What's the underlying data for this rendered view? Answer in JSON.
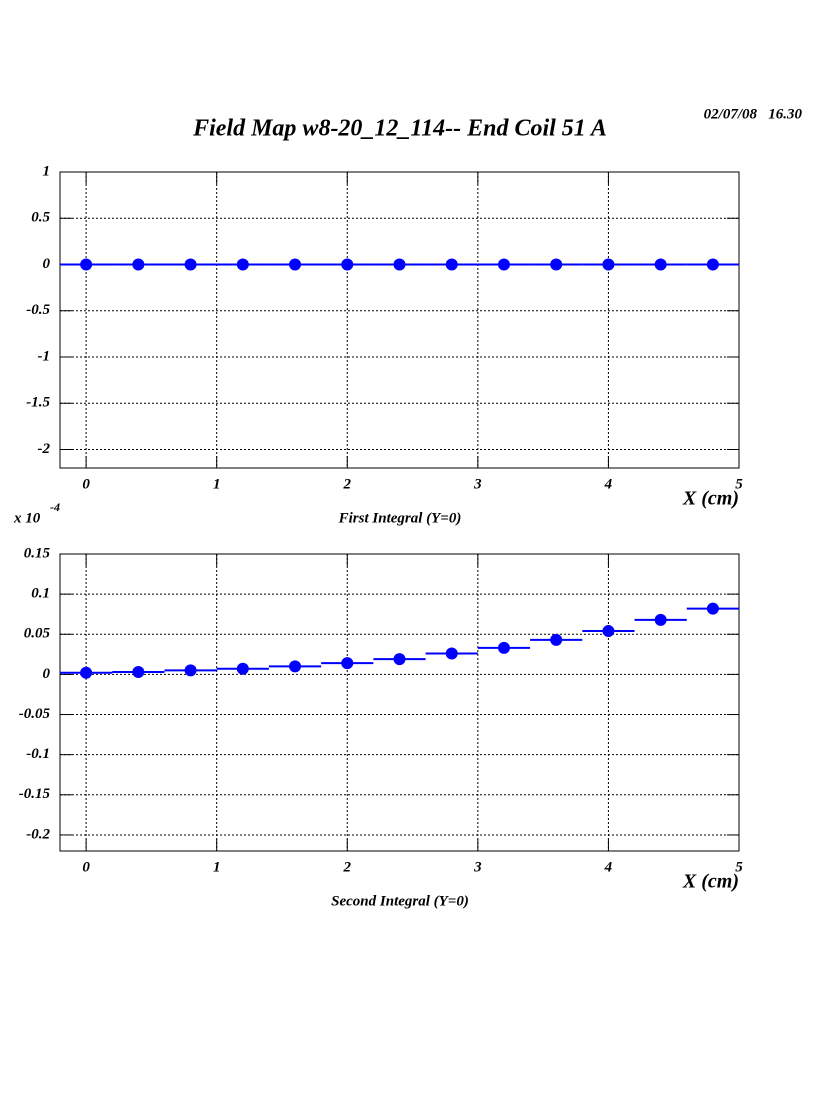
{
  "header": {
    "title": "Field Map w8-20_12_114-- End Coil 51 A",
    "timestamp": "02/07/08   16.30"
  },
  "chart_data": [
    {
      "type": "scatter",
      "caption": "First Integral (Y=0)",
      "xlabel": "X (cm)",
      "x": [
        0,
        0.4,
        0.8,
        1.2,
        1.6,
        2.0,
        2.4,
        2.8,
        3.2,
        3.6,
        4.0,
        4.4,
        4.8
      ],
      "series": [
        {
          "color": "#0000ff",
          "xerr": 0.2,
          "values": [
            0,
            0,
            0,
            0,
            0,
            0,
            0,
            0,
            0,
            0,
            0,
            0,
            0
          ]
        }
      ],
      "xlim": [
        -0.2,
        5
      ],
      "xticks": [
        0,
        1,
        2,
        3,
        4,
        5
      ],
      "ylim": [
        -2.2,
        1
      ],
      "yticks": [
        1,
        0.5,
        0,
        -0.5,
        -1,
        -1.5,
        -2
      ],
      "grid": true
    },
    {
      "type": "scatter",
      "caption": "Second Integral (Y=0)",
      "xlabel": "X (cm)",
      "y_multiplier": {
        "base": "x 10",
        "exponent": "-4"
      },
      "x": [
        0,
        0.4,
        0.8,
        1.2,
        1.6,
        2.0,
        2.4,
        2.8,
        3.2,
        3.6,
        4.0,
        4.4,
        4.8
      ],
      "series": [
        {
          "color": "#0000ff",
          "xerr": 0.2,
          "values": [
            0.002,
            0.003,
            0.005,
            0.007,
            0.01,
            0.014,
            0.019,
            0.026,
            0.033,
            0.043,
            0.054,
            0.068,
            0.082
          ]
        }
      ],
      "xlim": [
        -0.2,
        5
      ],
      "xticks": [
        0,
        1,
        2,
        3,
        4,
        5
      ],
      "ylim": [
        -0.22,
        0.15
      ],
      "yticks": [
        0.15,
        0.1,
        0.05,
        0,
        -0.05,
        -0.1,
        -0.15,
        -0.2
      ],
      "grid": true
    }
  ]
}
